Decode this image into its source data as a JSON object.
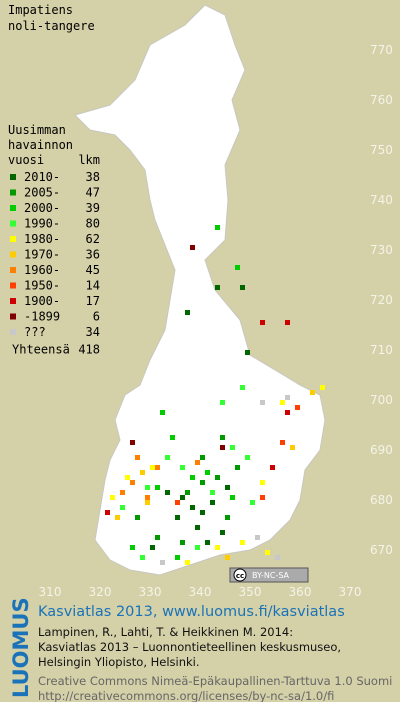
{
  "title": [
    "Impatiens",
    "noli-tangere"
  ],
  "legend": {
    "heading": [
      "Uusimman",
      "havainnon",
      "vuosi"
    ],
    "count_heading": "lkm",
    "classes": [
      {
        "label": "2010-",
        "count": 38,
        "color": "#006600",
        "squares": {
          "x": [
            337,
            343,
            348,
            349,
            336,
            338,
            340,
            342,
            335,
            339,
            341,
            344,
            333,
            345,
            330
          ],
          "y": [
            717,
            722,
            722,
            709,
            680,
            678,
            677,
            679,
            676,
            674,
            671,
            673,
            681,
            682,
            670
          ]
        }
      },
      {
        "label": "2005-",
        "count": 47,
        "color": "#009900",
        "squares": {
          "x": [
            344,
            343,
            340,
            337,
            331,
            345,
            336,
            347,
            327,
            340
          ],
          "y": [
            692,
            684,
            683,
            681,
            672,
            676,
            671,
            686,
            676,
            688
          ]
        }
      },
      {
        "label": "2000-",
        "count": 39,
        "color": "#00cc00",
        "squares": {
          "x": [
            343,
            347,
            332,
            334,
            331,
            338,
            341,
            346,
            335,
            326
          ],
          "y": [
            734,
            726,
            697,
            692,
            682,
            684,
            685,
            680,
            668,
            670
          ]
        }
      },
      {
        "label": "1990-",
        "count": 80,
        "color": "#33ff33",
        "squares": {
          "x": [
            348,
            349,
            344,
            333,
            329,
            342,
            339,
            350,
            324,
            336,
            328,
            346
          ],
          "y": [
            702,
            688,
            699,
            688,
            682,
            681,
            670,
            679,
            678,
            686,
            668,
            690
          ]
        }
      },
      {
        "label": "1980-",
        "count": 62,
        "color": "#ffff00",
        "squares": {
          "x": [
            364,
            356,
            353,
            348,
            325,
            322,
            330,
            343,
            337,
            352
          ],
          "y": [
            702,
            699,
            669,
            671,
            684,
            680,
            686,
            670,
            667,
            683
          ]
        }
      },
      {
        "label": "1970-",
        "count": 36,
        "color": "#ffcc00",
        "squares": {
          "x": [
            323,
            328,
            358,
            362,
            345,
            329
          ],
          "y": [
            676,
            685,
            690,
            701,
            668,
            679
          ]
        }
      },
      {
        "label": "1960-",
        "count": 45,
        "color": "#ff8000",
        "squares": {
          "x": [
            326,
            329,
            331,
            327,
            339,
            324
          ],
          "y": [
            683,
            680,
            686,
            688,
            687,
            681
          ]
        }
      },
      {
        "label": "1950-",
        "count": 14,
        "color": "#ff4000",
        "squares": {
          "x": [
            356,
            359,
            335,
            352
          ],
          "y": [
            691,
            698,
            679,
            680
          ]
        }
      },
      {
        "label": "1900-",
        "count": 17,
        "color": "#cc0000",
        "squares": {
          "x": [
            352,
            357,
            357,
            354,
            321
          ],
          "y": [
            715,
            715,
            697,
            686,
            677
          ]
        }
      },
      {
        "label": "-1899",
        "count": 6,
        "color": "#800000",
        "squares": {
          "x": [
            338,
            344,
            326
          ],
          "y": [
            730,
            690,
            691
          ]
        }
      },
      {
        "label": "???",
        "count": 34,
        "color": "#c8c8c8",
        "squares": {
          "x": [
            352,
            351,
            357,
            332,
            355
          ],
          "y": [
            699,
            672,
            700,
            667,
            668
          ]
        }
      }
    ],
    "total_label": "Yhteensä",
    "total": 418
  },
  "axes": {
    "x_ticks": [
      310,
      320,
      330,
      340,
      350,
      360,
      370
    ],
    "y_ticks": [
      670,
      680,
      690,
      700,
      710,
      720,
      730,
      740,
      750,
      760,
      770
    ]
  },
  "badge": [
    "cc",
    "BY-NC-SA"
  ],
  "footer": {
    "logo": "LUOMUS",
    "headline": "Kasviatlas 2013, www.luomus.fi/kasviatlas",
    "citation": [
      "Lampinen, R., Lahti, T. & Heikkinen M. 2014:",
      "Kasviatlas 2013 – Luonnontieteellinen keskusmuseo,",
      "Helsingin Yliopisto, Helsinki."
    ],
    "license": [
      "Creative Commons Nimeä-Epäkaupallinen-Tarttuva 1.0 Suomi",
      "http://creativecommons.org/licenses/by-nc-sa/1.0/fi"
    ]
  }
}
